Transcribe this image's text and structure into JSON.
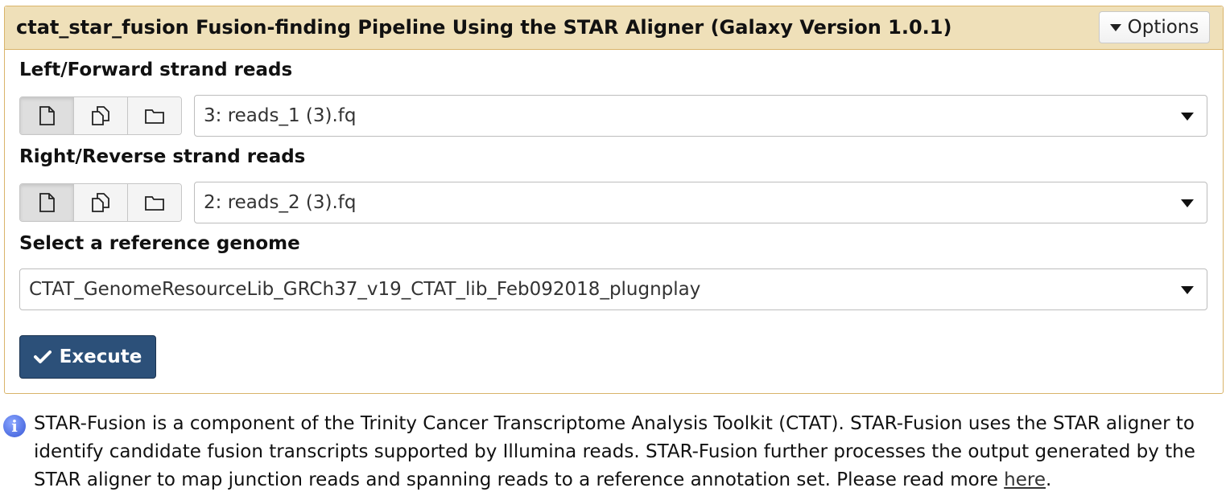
{
  "tool": {
    "title": "ctat_star_fusion Fusion-finding Pipeline Using the STAR Aligner (Galaxy Version 1.0.1)",
    "options_label": "Options"
  },
  "fields": {
    "left_reads": {
      "label": "Left/Forward strand reads",
      "value": "3: reads_1 (3).fq"
    },
    "right_reads": {
      "label": "Right/Reverse strand reads",
      "value": "2: reads_2 (3).fq"
    },
    "genome": {
      "label": "Select a reference genome",
      "value": "CTAT_GenomeResourceLib_GRCh37_v19_CTAT_lib_Feb092018_plugnplay"
    }
  },
  "dataset_modes": [
    {
      "icon": "single-file-icon"
    },
    {
      "icon": "multiple-files-icon"
    },
    {
      "icon": "folder-icon"
    }
  ],
  "execute": {
    "label": "Execute",
    "icon": "check-icon",
    "color": "#2c5079"
  },
  "help": {
    "icon": "info-icon",
    "text": "STAR-Fusion is a component of the Trinity Cancer Transcriptome Analysis Toolkit (CTAT). STAR-Fusion uses the STAR aligner to identify candidate fusion transcripts supported by Illumina reads. STAR-Fusion further processes the output generated by the STAR aligner to map junction reads and spanning reads to a reference annotation set. Please read more ",
    "link_text": "here",
    "trailing": "."
  },
  "colors": {
    "header_bg": "#efe0b9",
    "panel_border": "#d9b46a",
    "execute_bg": "#2c5079"
  }
}
